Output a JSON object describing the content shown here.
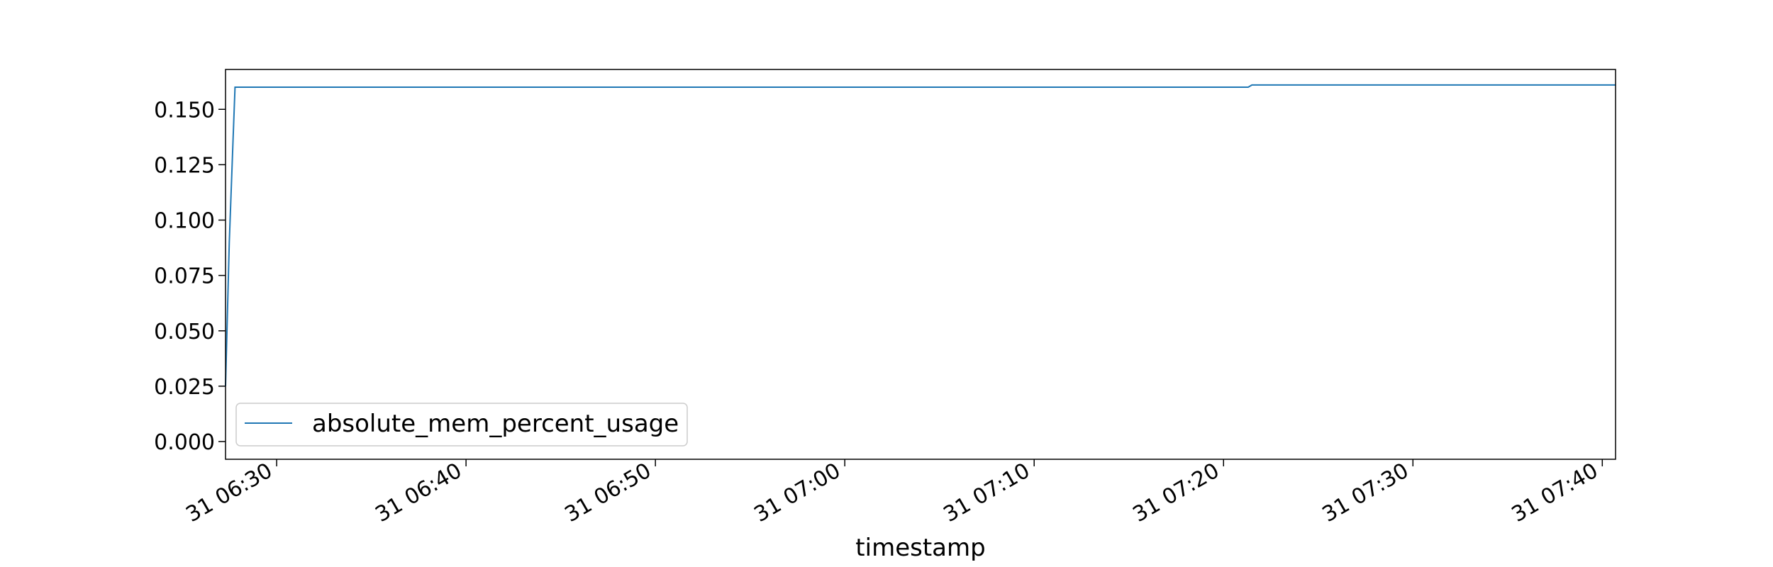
{
  "chart_data": {
    "type": "line",
    "title": "",
    "xlabel": "timestamp",
    "ylabel": "",
    "x_unit": "minutes since 31 06:30",
    "xlim": [
      -2.7,
      70.7
    ],
    "ylim": [
      -0.008,
      0.168
    ],
    "grid": false,
    "legend_position": "lower-left",
    "x_ticks": [
      {
        "value": 0,
        "label": "31 06:30"
      },
      {
        "value": 10,
        "label": "31 06:40"
      },
      {
        "value": 20,
        "label": "31 06:50"
      },
      {
        "value": 30,
        "label": "31 07:00"
      },
      {
        "value": 40,
        "label": "31 07:10"
      },
      {
        "value": 50,
        "label": "31 07:20"
      },
      {
        "value": 60,
        "label": "31 07:30"
      },
      {
        "value": 70,
        "label": "31 07:40"
      }
    ],
    "y_ticks": [
      {
        "value": 0.0,
        "label": "0.000"
      },
      {
        "value": 0.025,
        "label": "0.025"
      },
      {
        "value": 0.05,
        "label": "0.050"
      },
      {
        "value": 0.075,
        "label": "0.075"
      },
      {
        "value": 0.1,
        "label": "0.100"
      },
      {
        "value": 0.125,
        "label": "0.125"
      },
      {
        "value": 0.15,
        "label": "0.150"
      }
    ],
    "series": [
      {
        "name": "absolute_mem_percent_usage",
        "color": "#1f77b4",
        "x": [
          -2.7,
          -2.5,
          -2.3,
          -2.2,
          0,
          10,
          20,
          30,
          40,
          50,
          51.3,
          51.5,
          60,
          70,
          70.7
        ],
        "y": [
          0.025,
          0.09,
          0.137,
          0.16,
          0.16,
          0.16,
          0.16,
          0.16,
          0.16,
          0.16,
          0.16,
          0.161,
          0.161,
          0.161,
          0.161
        ]
      }
    ]
  }
}
